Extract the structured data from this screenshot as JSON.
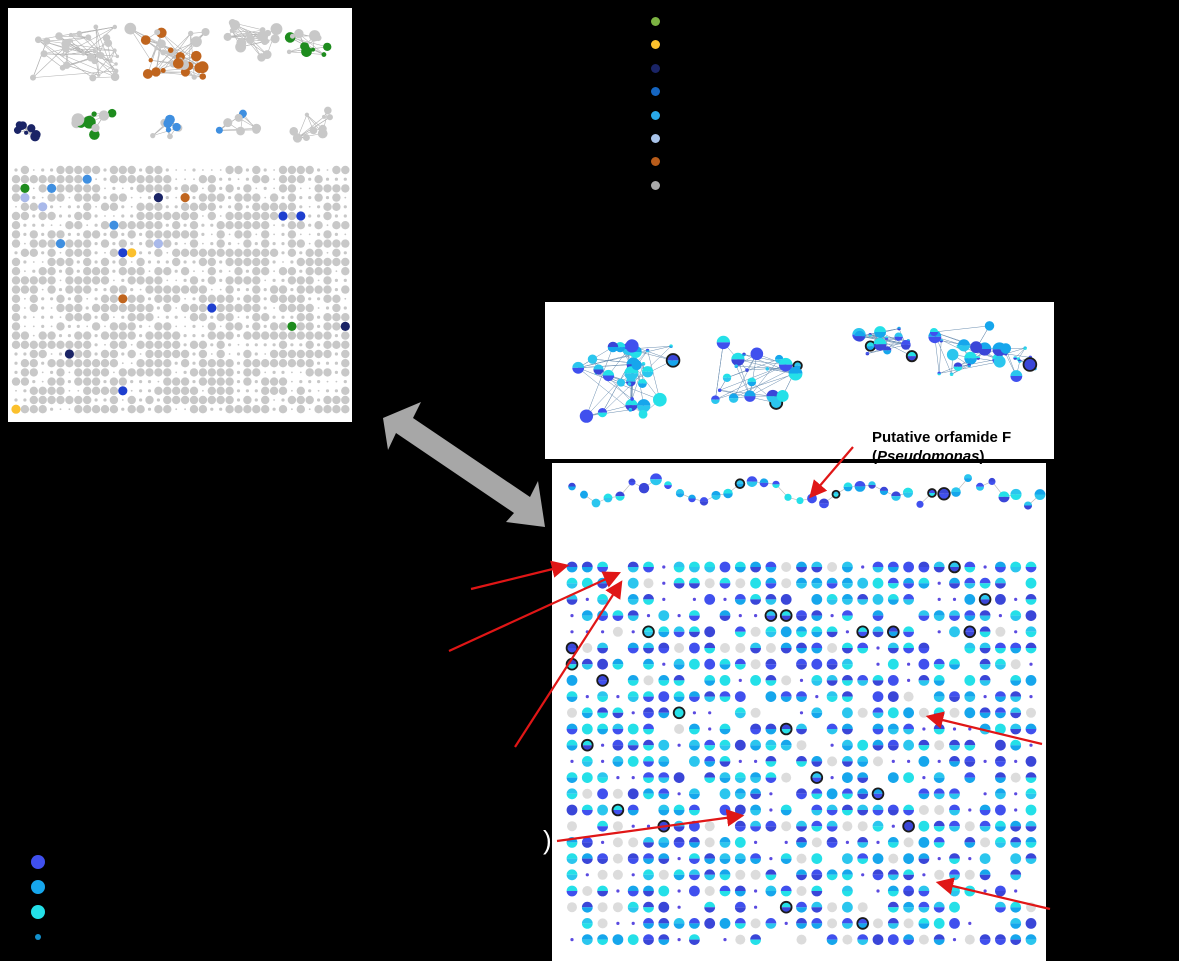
{
  "colors": {
    "background": "#000000",
    "panel": "#ffffff",
    "node_grey": "#c8c8c8",
    "edge_grey": "#b4b4b4",
    "arrow_red": "#e01616",
    "double_arrow": "#a7a7a7",
    "ring": "#1b1b1b"
  },
  "top_legend": {
    "items": [
      {
        "color": "#7cb342"
      },
      {
        "color": "#fbc02d"
      },
      {
        "color": "#1a2466"
      },
      {
        "color": "#1565c0"
      },
      {
        "color": "#29a8e8"
      },
      {
        "color": "#a9c4ea"
      },
      {
        "color": "#b85c1a"
      },
      {
        "color": "#a8a8a8"
      }
    ]
  },
  "bottom_legend": {
    "items": [
      {
        "color": "#4050ee",
        "size": "large"
      },
      {
        "color": "#16a6ec",
        "size": "large"
      },
      {
        "color": "#24e0e8",
        "size": "large"
      },
      {
        "color": "#1290cc",
        "size": "small"
      }
    ]
  },
  "panel_a": {
    "cluster_colors": [
      "#1e8c1e",
      "#c0651e",
      "#1a2466",
      "#3f8fe0",
      "#fbc02d",
      "#1e3fcf",
      "#a9b9ea"
    ]
  },
  "panel_c": {
    "annotation": {
      "prefix": "Putative orfamide F",
      "genus_open": "(",
      "genus": "Pseudomonas",
      "genus_close": ")"
    }
  },
  "stray_text": ")"
}
